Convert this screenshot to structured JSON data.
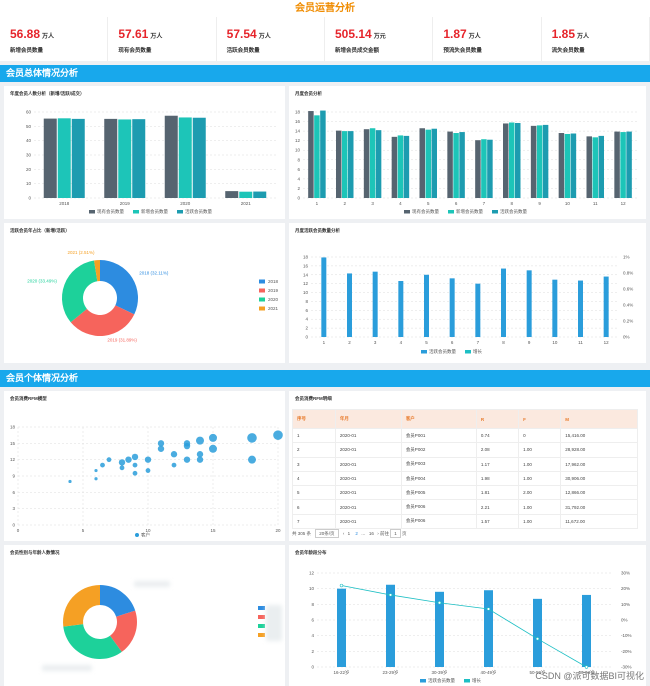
{
  "title": "会员运营分析",
  "kpis": [
    {
      "value": "56.88",
      "unit": "万人",
      "label": "新增会员数量"
    },
    {
      "value": "57.61",
      "unit": "万人",
      "label": "现有会员数量"
    },
    {
      "value": "57.54",
      "unit": "万人",
      "label": "活跃会员数量"
    },
    {
      "value": "505.14",
      "unit": "万元",
      "label": "新增会员成交金额"
    },
    {
      "value": "1.87",
      "unit": "万人",
      "label": "预流失会员数量"
    },
    {
      "value": "1.85",
      "unit": "万人",
      "label": "流失会员数量"
    }
  ],
  "sections": {
    "overall": "会员总体情况分析",
    "individual": "会员个体情况分析"
  },
  "panels": {
    "p1": "年度会员人数分析（新增/活跃/成交）",
    "p2": "月度会员分析",
    "p3": "活跃会员年占比（新增/活跃）",
    "p4": "月度活跃会员数量分析",
    "p5": "会员消费RFM模型",
    "p6": "会员消费RFM明细",
    "p7": "会员性别与年龄人数情况",
    "p8": "会员年龄段分布"
  },
  "table": {
    "headers": [
      "序号",
      "年月",
      "客户",
      "R",
      "F",
      "M"
    ],
    "rows": [
      [
        "1",
        "2020-01",
        "会员P001",
        "0.74",
        "0",
        "15,416.00"
      ],
      [
        "2",
        "2020-01",
        "会员P002",
        "2.08",
        "1.00",
        "28,928.00"
      ],
      [
        "3",
        "2020-01",
        "会员P003",
        "1.17",
        "1.00",
        "17,962.00"
      ],
      [
        "4",
        "2020-01",
        "会员P004",
        "1.98",
        "1.00",
        "30,906.00"
      ],
      [
        "5",
        "2020-01",
        "会员P005",
        "1.81",
        "2.00",
        "12,866.00"
      ],
      [
        "6",
        "2020-01",
        "会员P006",
        "2.21",
        "1.00",
        "31,792.00"
      ],
      [
        "7",
        "2020-01",
        "会员P006",
        "1.57",
        "1.00",
        "11,672.00"
      ]
    ]
  },
  "pager": {
    "total": "共 305 条",
    "size": "20条/页",
    "pages": [
      "1",
      "2",
      "16"
    ],
    "goto": "前往",
    "page": "1",
    "suffix": "页"
  },
  "watermark": "CSDN @派可数据BI可视化",
  "chart_data": [
    {
      "type": "bar",
      "id": "annual",
      "categories": [
        "2018",
        "2019",
        "2020",
        "2021"
      ],
      "ylim": [
        0,
        60
      ],
      "yticks": [
        0,
        10,
        20,
        30,
        40,
        50,
        60
      ],
      "series": [
        {
          "name": "现有会员数量",
          "color": "#566470",
          "values": [
            55.4,
            55.2,
            57.4,
            4.8
          ]
        },
        {
          "name": "新增会员数量",
          "color": "#1dc5b8",
          "values": [
            55.6,
            54.8,
            56.2,
            4.4
          ]
        },
        {
          "name": "活跃会员数量",
          "color": "#1d9cb0",
          "values": [
            55.2,
            55.0,
            56.0,
            4.5
          ]
        }
      ]
    },
    {
      "type": "bar",
      "id": "monthly",
      "categories": [
        "1",
        "2",
        "3",
        "4",
        "5",
        "6",
        "7",
        "8",
        "9",
        "10",
        "11",
        "12"
      ],
      "ylim": [
        0,
        18
      ],
      "yticks": [
        0,
        2,
        4,
        6,
        8,
        10,
        12,
        14,
        16,
        18
      ],
      "series": [
        {
          "name": "现有会员数量",
          "color": "#566470",
          "values": [
            18.2,
            14.1,
            14.4,
            12.8,
            14.6,
            13.9,
            12.1,
            15.6,
            15.1,
            13.6,
            12.9,
            13.9
          ]
        },
        {
          "name": "新增会员数量",
          "color": "#1dc5b8",
          "values": [
            17.3,
            14.0,
            14.6,
            13.1,
            14.3,
            13.6,
            12.3,
            15.8,
            15.2,
            13.4,
            12.7,
            13.8
          ]
        },
        {
          "name": "活跃会员数量",
          "color": "#1d9cb0",
          "values": [
            18.3,
            14.0,
            14.2,
            13.0,
            14.5,
            13.8,
            12.2,
            15.7,
            15.3,
            13.5,
            13.0,
            13.9
          ]
        }
      ]
    },
    {
      "type": "pie",
      "id": "yearshare",
      "series": [
        {
          "name": "2018",
          "value": 32.11,
          "color": "#2d8ce0"
        },
        {
          "name": "2019",
          "value": 31.89,
          "color": "#f6645c"
        },
        {
          "name": "2020",
          "value": 33.49,
          "color": "#1dd19a"
        },
        {
          "name": "2021",
          "value": 2.51,
          "color": "#f5a024"
        }
      ],
      "labels": [
        "2018 (32.11%)",
        "2019 (31.89%)",
        "2020 (33.49%)",
        "2021 (2.51%)"
      ]
    },
    {
      "type": "bar",
      "id": "monthlyactive",
      "categories": [
        "1",
        "2",
        "3",
        "4",
        "5",
        "6",
        "7",
        "8",
        "9",
        "10",
        "11",
        "12"
      ],
      "ylim": [
        0,
        18
      ],
      "yticks": [
        0,
        2,
        4,
        6,
        8,
        10,
        12,
        14,
        16,
        18
      ],
      "y2ticks": [
        "0%",
        "0.2%",
        "0.4%",
        "0.6%",
        "0.8%",
        "1%"
      ],
      "series": [
        {
          "name": "活跃会员数量",
          "color": "#2a9ddb",
          "values": [
            17.9,
            14.3,
            14.7,
            12.6,
            14.0,
            13.2,
            12.0,
            15.4,
            15.0,
            12.9,
            12.7,
            13.6
          ]
        },
        {
          "name": "增长",
          "color": "#1dbfc4",
          "values": [
            0,
            0,
            0,
            0,
            0,
            0,
            0,
            0,
            0,
            0,
            0,
            0
          ]
        }
      ]
    },
    {
      "type": "scatter",
      "id": "rfm",
      "xlim": [
        0,
        20
      ],
      "ylim": [
        0,
        18
      ],
      "xticks": [
        0,
        5,
        10,
        15,
        20
      ],
      "yticks": [
        0,
        3,
        6,
        9,
        12,
        15,
        18
      ],
      "series": [
        {
          "name": "客户",
          "color": "#2a9ddb",
          "points": [
            [
              4,
              8,
              2
            ],
            [
              6,
              8.5,
              2
            ],
            [
              6,
              10,
              2
            ],
            [
              6.5,
              11,
              3
            ],
            [
              7,
              12,
              3
            ],
            [
              8,
              10.5,
              3
            ],
            [
              8,
              11.5,
              4
            ],
            [
              8.5,
              12,
              4
            ],
            [
              9,
              12.5,
              4
            ],
            [
              9,
              11,
              3
            ],
            [
              10,
              12,
              4
            ],
            [
              10,
              10,
              3
            ],
            [
              9,
              9.5,
              3
            ],
            [
              11,
              14,
              4
            ],
            [
              11,
              15,
              4
            ],
            [
              12,
              13,
              4
            ],
            [
              12,
              11,
              3
            ],
            [
              13,
              12,
              4
            ],
            [
              13,
              14.5,
              4
            ],
            [
              13,
              15,
              4
            ],
            [
              14,
              15.5,
              5
            ],
            [
              14,
              13,
              4
            ],
            [
              14,
              12,
              4
            ],
            [
              15,
              14,
              5
            ],
            [
              15,
              16,
              5
            ],
            [
              18,
              16,
              6
            ],
            [
              20,
              16.5,
              6
            ],
            [
              18,
              12,
              5
            ]
          ]
        }
      ]
    },
    {
      "type": "pie",
      "id": "gender",
      "series": [
        {
          "value": 20,
          "color": "#2d8ce0"
        },
        {
          "value": 20,
          "color": "#f6645c"
        },
        {
          "value": 33,
          "color": "#1dd19a"
        },
        {
          "value": 27,
          "color": "#f5a024"
        }
      ]
    },
    {
      "type": "bar",
      "id": "agedist",
      "categories": [
        "16-22岁",
        "23-29岁",
        "30-39岁",
        "40-49岁",
        "50-59岁",
        "60-64岁"
      ],
      "ylim": [
        0,
        12
      ],
      "yticks": [
        0,
        2,
        4,
        6,
        8,
        10,
        12
      ],
      "y2ticks": [
        "-30%",
        "-20%",
        "-10%",
        "0%",
        "10%",
        "20%",
        "30%"
      ],
      "series": [
        {
          "name": "活跃会员数量",
          "color": "#2a9ddb",
          "values": [
            10.0,
            10.5,
            9.6,
            9.8,
            8.7,
            9.2
          ]
        },
        {
          "name": "增长",
          "color": "#1dbfc4",
          "values": [
            22,
            16,
            11,
            7,
            -12,
            -30
          ]
        }
      ]
    }
  ]
}
